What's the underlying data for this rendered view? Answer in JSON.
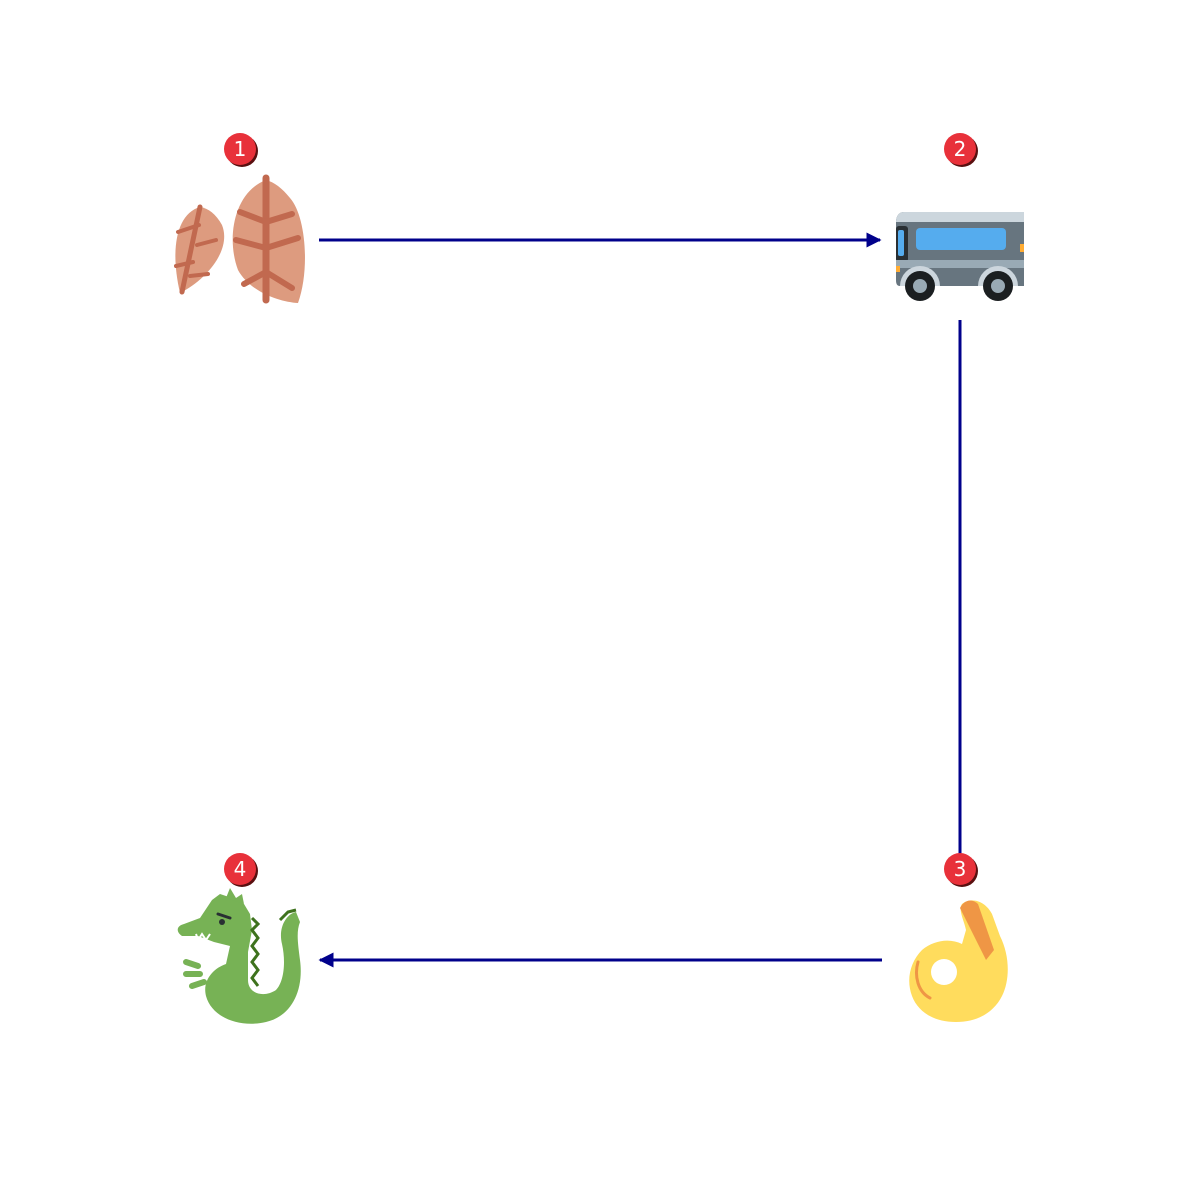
{
  "nodes": [
    {
      "id": 1,
      "label": "1",
      "icon": "fallen-leaves-icon",
      "colors": {
        "leaf": "#dd9b7f",
        "vein": "#c1694f"
      }
    },
    {
      "id": 2,
      "label": "2",
      "icon": "bus-icon",
      "colors": {
        "body": "#67757f",
        "roof": "#ccd6dd",
        "window": "#55acee",
        "wheel": "#1b1f21"
      }
    },
    {
      "id": 3,
      "label": "3",
      "icon": "ok-hand-icon",
      "colors": {
        "skin": "#ffdc5d",
        "shade": "#ef9645"
      }
    },
    {
      "id": 4,
      "label": "4",
      "icon": "dragon-icon",
      "colors": {
        "body": "#77b255",
        "dark": "#3e721d"
      }
    }
  ],
  "edges": [
    {
      "from": 1,
      "to": 2,
      "arrow": "end"
    },
    {
      "from": 2,
      "to": 3,
      "arrow": "none"
    },
    {
      "from": 3,
      "to": 4,
      "arrow": "end"
    }
  ],
  "colors": {
    "edge": "#00008b",
    "badge": "#e8313a",
    "badge_shadow": "#5a1010",
    "badge_text": "#ffffff"
  }
}
